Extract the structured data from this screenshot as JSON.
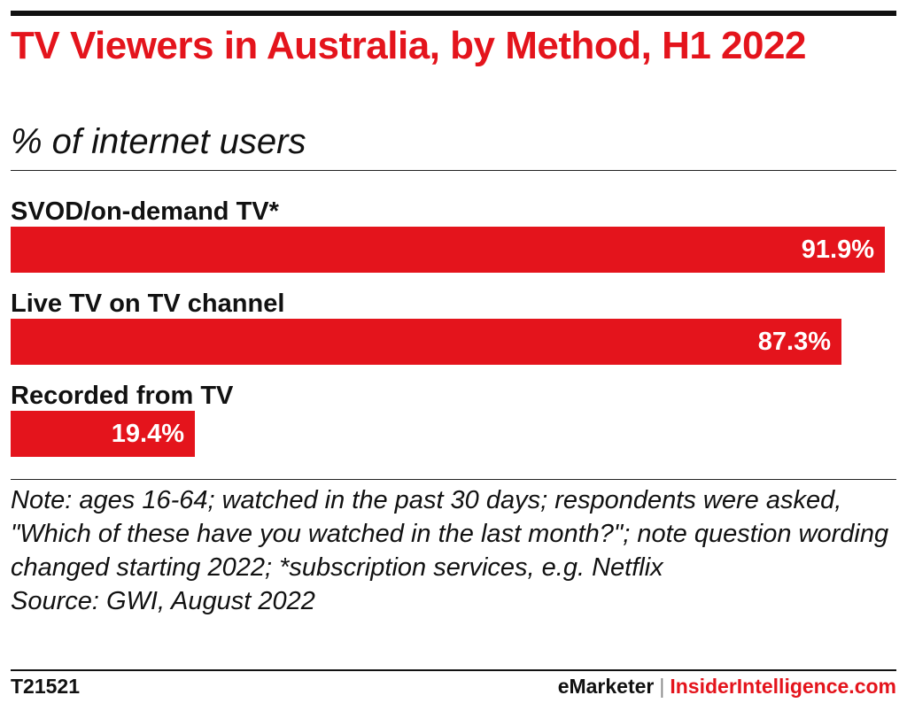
{
  "chart_data": {
    "type": "bar",
    "orientation": "horizontal",
    "title": "TV Viewers in Australia, by Method, H1 2022",
    "subtitle": "% of internet users",
    "categories": [
      "SVOD/on-demand TV*",
      "Live TV on TV channel",
      "Recorded from TV"
    ],
    "values": [
      91.9,
      87.3,
      19.4
    ],
    "value_labels": [
      "91.9%",
      "87.3%",
      "19.4%"
    ],
    "xlim": [
      0,
      91.9
    ],
    "bar_color": "#e4141c",
    "grid": false,
    "legend": "none"
  },
  "note": {
    "label": "Note:",
    "text": " ages 16-64; watched in the past 30 days; respondents were asked, \"Which of these have you watched in the last month?\"; note question wording changed starting 2022; *subscription services, e.g. Netflix"
  },
  "source": "Source: GWI, August 2022",
  "footer": {
    "chart_id": "T21521",
    "brand_a": "eMarketer",
    "separator": "|",
    "brand_b": "InsiderIntelligence.com"
  },
  "colors": {
    "accent": "#e4141c",
    "text": "#111111"
  }
}
